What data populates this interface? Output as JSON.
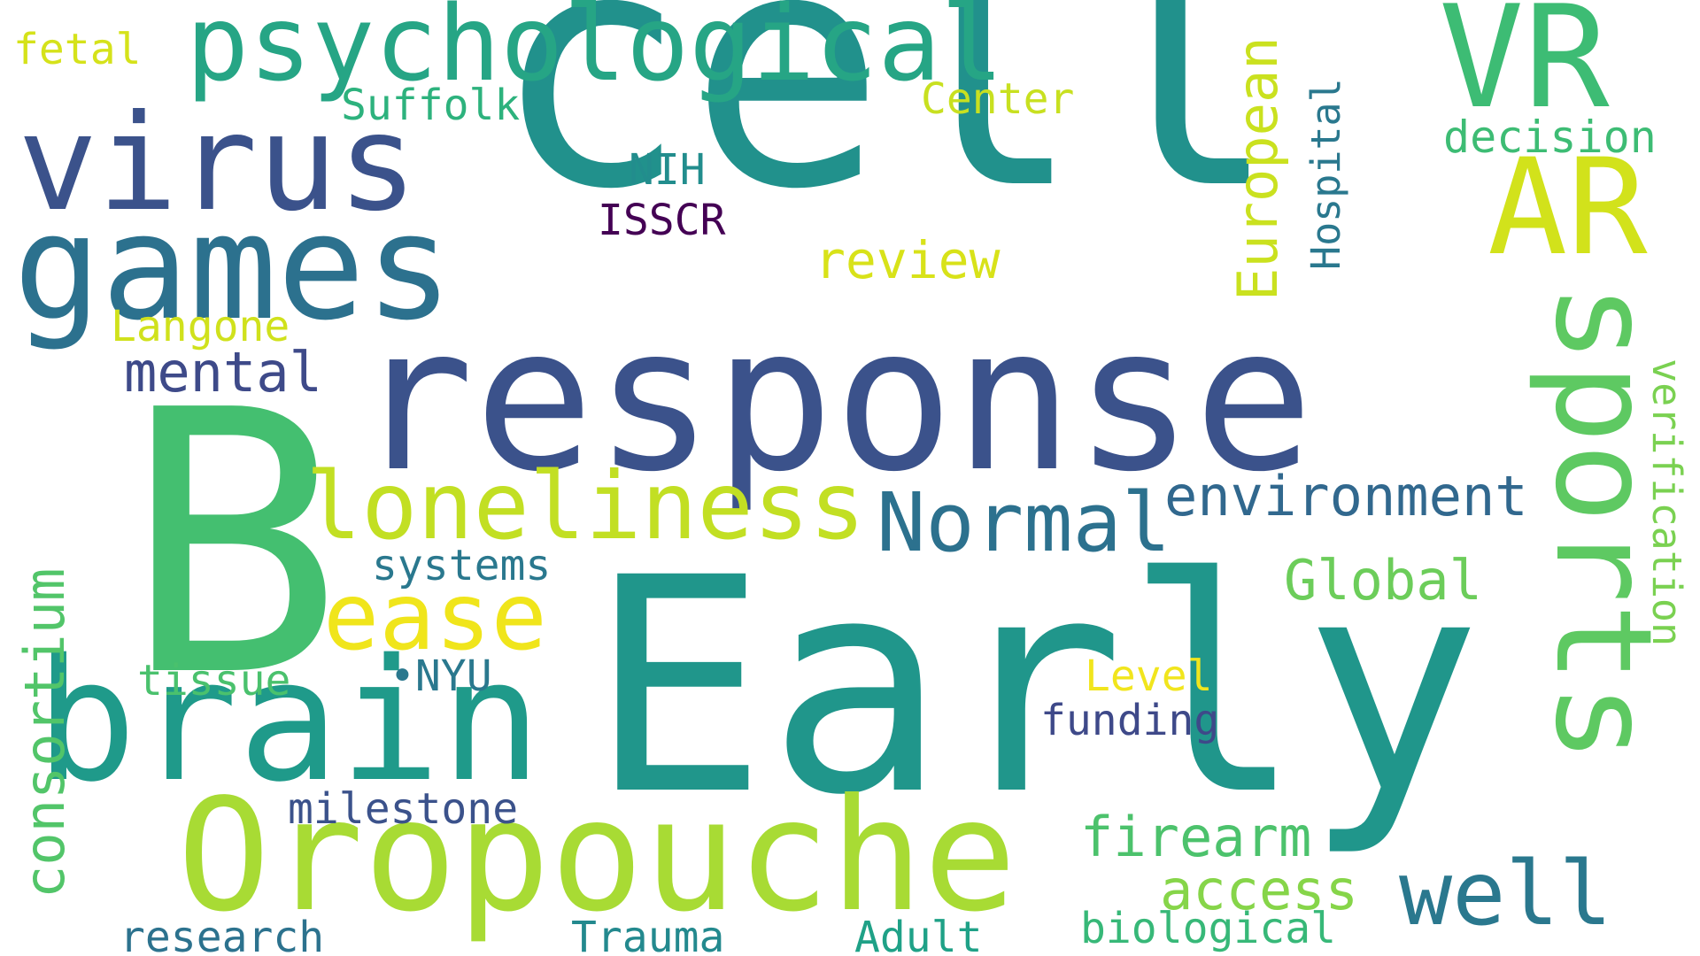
{
  "wordcloud": {
    "background": "#ffffff",
    "words": [
      {
        "text": "cell",
        "color": "#21918c"
      },
      {
        "text": "response",
        "color": "#3b528b"
      },
      {
        "text": "B",
        "color": "#44bf70"
      },
      {
        "text": "Early",
        "color": "#20968b"
      },
      {
        "text": "Oropouche",
        "color": "#a8db34"
      },
      {
        "text": "brain",
        "color": "#1f9a8a"
      },
      {
        "text": "games",
        "color": "#2c718e"
      },
      {
        "text": "virus",
        "color": "#3b528b"
      },
      {
        "text": "psychological",
        "color": "#26a585"
      },
      {
        "text": "VR",
        "color": "#3dbc74"
      },
      {
        "text": "AR",
        "color": "#d2e21b"
      },
      {
        "text": "sports",
        "color": "#5ec962"
      },
      {
        "text": "loneliness",
        "color": "#c2df23"
      },
      {
        "text": "ease",
        "color": "#f0e51b"
      },
      {
        "text": "Normal",
        "color": "#2c718e"
      },
      {
        "text": "well",
        "color": "#2a788e"
      },
      {
        "text": "environment",
        "color": "#31688e"
      },
      {
        "text": "mental",
        "color": "#3e4a89"
      },
      {
        "text": "Global",
        "color": "#6ccd5a"
      },
      {
        "text": "firearm",
        "color": "#4cc26c"
      },
      {
        "text": "access",
        "color": "#86d549"
      },
      {
        "text": "European",
        "color": "#cae11f"
      },
      {
        "text": "consortium",
        "color": "#52c569"
      },
      {
        "text": "review",
        "color": "#d8e219"
      },
      {
        "text": "decision",
        "color": "#3dbc74"
      },
      {
        "text": "verification",
        "color": "#7ad151"
      },
      {
        "text": "Hospital",
        "color": "#2a788e"
      },
      {
        "text": "Suffolk",
        "color": "#2db27d"
      },
      {
        "text": "Center",
        "color": "#c8e020"
      },
      {
        "text": "Langone",
        "color": "#d0e11c"
      },
      {
        "text": "systems",
        "color": "#2a788e"
      },
      {
        "text": "tissue",
        "color": "#4ac16d"
      },
      {
        "text": "milestone",
        "color": "#3b528b"
      },
      {
        "text": "Level",
        "color": "#f1e51d"
      },
      {
        "text": "funding",
        "color": "#3e4989"
      },
      {
        "text": "•NYU",
        "color": "#2a788e"
      },
      {
        "text": "biological",
        "color": "#37b878"
      },
      {
        "text": "research",
        "color": "#2c728e"
      },
      {
        "text": "Trauma",
        "color": "#23898e"
      },
      {
        "text": "Adult",
        "color": "#1fa187"
      },
      {
        "text": "fetal",
        "color": "#d5e21a"
      },
      {
        "text": "NIH",
        "color": "#228d8d"
      },
      {
        "text": "ISSCR",
        "color": "#440154"
      }
    ]
  }
}
